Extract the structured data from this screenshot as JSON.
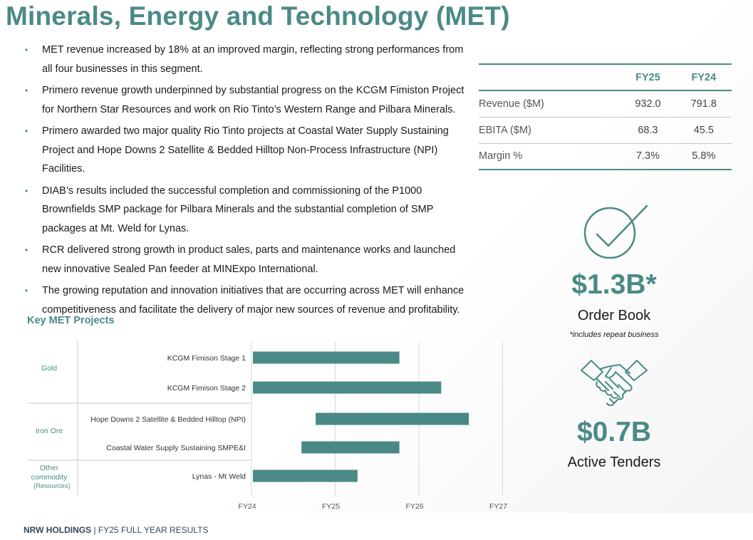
{
  "title": "Minerals, Energy and Technology (MET)",
  "bullets": [
    "MET revenue increased by 18% at an improved margin, reflecting strong performances from all four businesses in this segment.",
    "Primero revenue growth underpinned by substantial progress on the KCGM Fimiston Project for Northern Star Resources and work on Rio Tinto’s Western Range and Pilbara Minerals.",
    "Primero awarded two major quality Rio Tinto projects at Coastal Water Supply Sustaining Project and Hope Downs 2 Satellite & Bedded Hilltop Non-Process Infrastructure (NPI) Facilities.",
    "DIAB’s results included the successful completion and commissioning of the P1000 Brownfields SMP package for Pilbara Minerals and the substantial completion of SMP packages at Mt. Weld for Lynas.",
    "RCR delivered strong growth in product sales, parts and maintenance works and launched new innovative Sealed Pan feeder at MINExpo International.",
    "The growing reputation and innovation initiatives that are occurring across MET will enhance competitiveness and facilitate the delivery of major new sources of revenue and profitability."
  ],
  "kpi": {
    "columns": [
      "FY25",
      "FY24"
    ],
    "rows": [
      {
        "label": "Revenue ($M)",
        "fy25": "932.0",
        "fy24": "791.8"
      },
      {
        "label": "EBITA ($M)",
        "fy25": "68.3",
        "fy24": "45.5"
      },
      {
        "label": "Margin %",
        "fy25": "7.3%",
        "fy24": "5.8%"
      }
    ]
  },
  "order_book": {
    "value": "$1.3B*",
    "label": "Order Book",
    "note": "*includes repeat business"
  },
  "tenders": {
    "value": "$0.7B",
    "label": "Active Tenders"
  },
  "chart_title": "Key MET Projects",
  "chart_data": {
    "type": "bar",
    "orientation": "horizontal-gantt",
    "title": "Key MET Projects",
    "xlim": [
      0,
      3
    ],
    "x_ticks": [
      "FY24",
      "FY25",
      "FY26",
      "FY27"
    ],
    "groups": [
      {
        "name": "Gold",
        "sub": "",
        "items": [
          0,
          1
        ]
      },
      {
        "name": "Iron Ore",
        "sub": "",
        "items": [
          2,
          3
        ]
      },
      {
        "name": "Other commodity",
        "sub": "(Resources)",
        "items": [
          4
        ]
      }
    ],
    "projects": [
      {
        "name": "KCGM Fimison Stage 1",
        "start": 0.0,
        "end": 1.75
      },
      {
        "name": "KCGM Fimison Stage 2",
        "start": 0.0,
        "end": 2.25
      },
      {
        "name": "Hope Downs 2 Satellite & Bedded Hilltop (NPI)",
        "start": 0.75,
        "end": 2.58
      },
      {
        "name": "Coastal Water Supply Sustaining SMPE&I",
        "start": 0.58,
        "end": 1.75
      },
      {
        "name": "Lynas - Mt Weld",
        "start": 0.0,
        "end": 1.25
      }
    ]
  },
  "footer": {
    "company": "NRW HOLDINGS",
    "separator": "|",
    "text": "FY25 FULL YEAR RESULTS"
  },
  "colors": {
    "accent": "#4a8a86",
    "bar": "#4a8a86"
  }
}
